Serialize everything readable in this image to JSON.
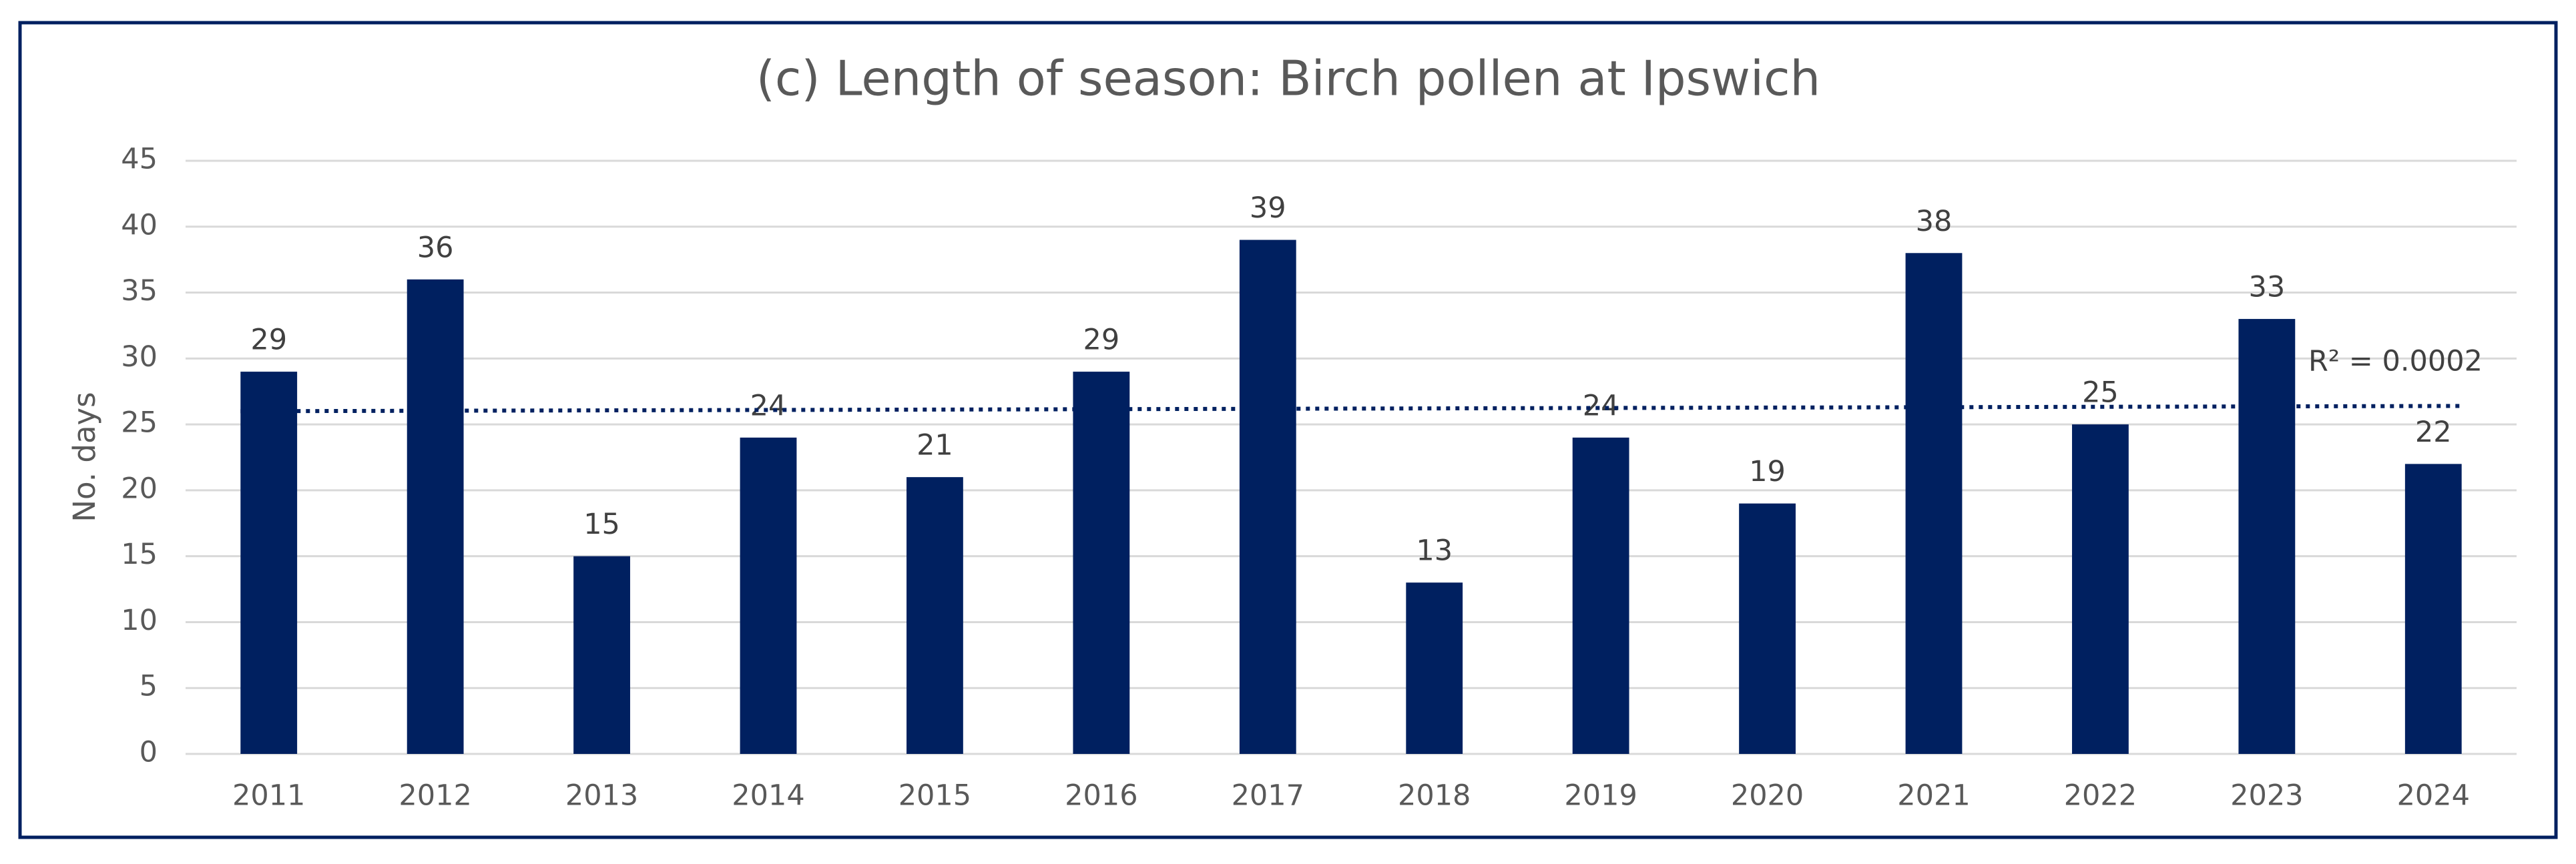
{
  "chart_data": {
    "type": "bar",
    "title": "(c) Length of season: Birch pollen at Ipswich",
    "y_label": "No. days",
    "categories": [
      "2011",
      "2012",
      "2013",
      "2014",
      "2015",
      "2016",
      "2017",
      "2018",
      "2019",
      "2020",
      "2021",
      "2022",
      "2023",
      "2024"
    ],
    "values": [
      29,
      36,
      15,
      24,
      21,
      29,
      39,
      13,
      24,
      19,
      38,
      25,
      33,
      22
    ],
    "color": "#002060",
    "ylim": [
      0,
      45
    ],
    "yticks": [
      0,
      5,
      10,
      15,
      20,
      25,
      30,
      35,
      40,
      45
    ],
    "grid": true,
    "trendline": {
      "values": [
        26.0,
        26.4
      ],
      "label": "R² = 0.0002",
      "color": "#002060"
    }
  }
}
